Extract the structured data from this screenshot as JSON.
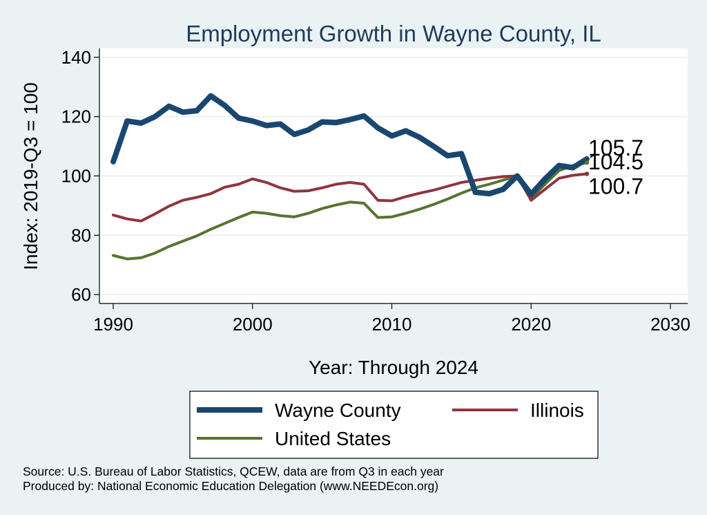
{
  "chart_data": {
    "type": "line",
    "title": "Employment Growth in Wayne County, IL",
    "xlabel": "Year: Through 2024",
    "ylabel": "Index: 2019-Q3 = 100",
    "xlim": [
      1990,
      2030
    ],
    "ylim": [
      57,
      143
    ],
    "xticks": [
      1990,
      2000,
      2010,
      2020,
      2030
    ],
    "yticks": [
      60,
      80,
      100,
      120,
      140
    ],
    "grid": "horizontal",
    "legend": "bottom",
    "x": [
      1990,
      1991,
      1992,
      1993,
      1994,
      1995,
      1996,
      1997,
      1998,
      1999,
      2000,
      2001,
      2002,
      2003,
      2004,
      2005,
      2006,
      2007,
      2008,
      2009,
      2010,
      2011,
      2012,
      2013,
      2014,
      2015,
      2016,
      2017,
      2018,
      2019,
      2020,
      2021,
      2022,
      2023,
      2024
    ],
    "series": [
      {
        "name": "Wayne  County",
        "color": "#1a476f",
        "values": [
          104.8,
          118.5,
          117.8,
          120.0,
          123.5,
          121.5,
          122.0,
          127.0,
          123.8,
          119.5,
          118.5,
          117.0,
          117.5,
          114.0,
          115.5,
          118.2,
          118.0,
          119.0,
          120.2,
          116.2,
          113.5,
          115.2,
          113.0,
          110.0,
          106.8,
          107.5,
          94.5,
          94.0,
          95.5,
          100.0,
          93.8,
          99.0,
          103.5,
          102.8,
          105.7
        ],
        "end_label": "105.7"
      },
      {
        "name": "Illinois",
        "color": "#90353b",
        "values": [
          86.8,
          85.5,
          84.8,
          87.2,
          89.8,
          91.8,
          92.8,
          94.0,
          96.2,
          97.2,
          99.0,
          97.8,
          96.0,
          94.8,
          95.0,
          96.0,
          97.2,
          97.8,
          97.2,
          91.8,
          91.6,
          93.0,
          94.2,
          95.2,
          96.5,
          97.8,
          98.5,
          99.2,
          99.8,
          100.0,
          91.8,
          95.5,
          99.2,
          100.2,
          100.7
        ],
        "end_label": "100.7"
      },
      {
        "name": "United States",
        "color": "#55752f",
        "values": [
          73.2,
          72.0,
          72.4,
          74.0,
          76.2,
          78.0,
          79.8,
          82.0,
          84.0,
          86.0,
          87.8,
          87.4,
          86.6,
          86.2,
          87.4,
          89.0,
          90.2,
          91.2,
          90.8,
          86.0,
          86.2,
          87.4,
          88.8,
          90.4,
          92.2,
          94.2,
          96.0,
          97.2,
          98.6,
          100.0,
          92.5,
          97.2,
          101.8,
          103.5,
          104.5
        ],
        "end_label": "104.5"
      }
    ]
  },
  "footer": {
    "source": "Source: U.S. Bureau of Labor Statistics, QCEW, data are from Q3 in each year",
    "produced": "Produced by: National Economic Education Delegation (www.NEEDEcon.org)"
  }
}
